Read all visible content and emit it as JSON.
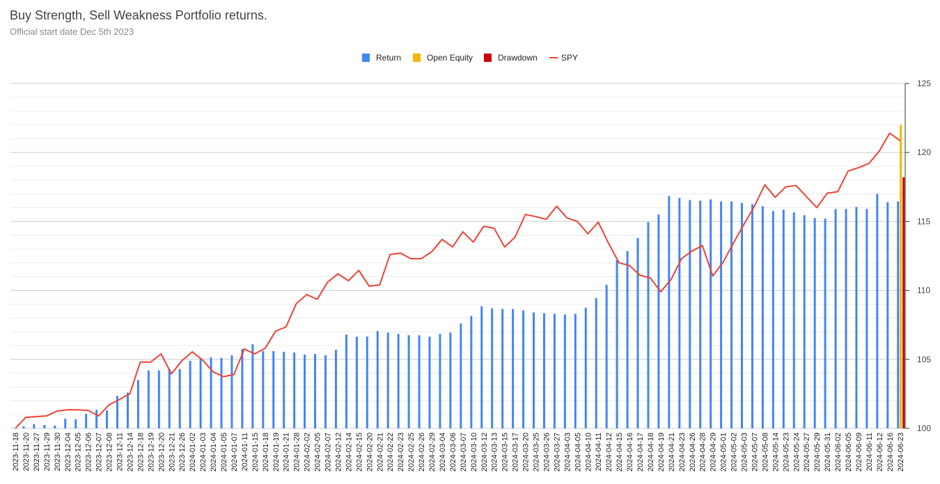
{
  "chart_data": {
    "type": "bar_line",
    "title": "Buy Strength, Sell Weakness Portfolio returns.",
    "subtitle": "Official start date Dec 5th 2023",
    "categories": [
      "2023-11-18",
      "2023-11-20",
      "2023-11-27",
      "2023-11-29",
      "2023-11-30",
      "2023-12-04",
      "2023-12-05",
      "2023-12-06",
      "2023-12-07",
      "2023-12-08",
      "2023-12-11",
      "2023-12-14",
      "2023-12-18",
      "2023-12-19",
      "2023-12-20",
      "2023-12-21",
      "2023-12-26",
      "2024-01-02",
      "2024-01-03",
      "2024-01-04",
      "2024-01-05",
      "2024-01-07",
      "2024-01-11",
      "2024-01-15",
      "2024-01-18",
      "2024-01-19",
      "2024-01-21",
      "2024-01-28",
      "2024-02-02",
      "2024-02-05",
      "2024-02-07",
      "2024-02-12",
      "2024-02-14",
      "2024-02-15",
      "2024-02-20",
      "2024-02-21",
      "2024-02-22",
      "2024-02-23",
      "2024-02-25",
      "2024-02-26",
      "2024-02-29",
      "2024-03-04",
      "2024-03-06",
      "2024-03-07",
      "2024-03-10",
      "2024-03-12",
      "2024-03-13",
      "2024-03-15",
      "2024-03-17",
      "2024-03-20",
      "2024-03-25",
      "2024-03-26",
      "2024-03-27",
      "2024-04-03",
      "2024-04-05",
      "2024-04-10",
      "2024-04-11",
      "2024-04-12",
      "2024-04-15",
      "2024-04-16",
      "2024-04-17",
      "2024-04-18",
      "2024-04-19",
      "2024-04-21",
      "2024-04-23",
      "2024-04-26",
      "2024-04-28",
      "2024-04-29",
      "2024-05-01",
      "2024-05-02",
      "2024-05-03",
      "2024-05-07",
      "2024-05-08",
      "2024-05-14",
      "2024-05-23",
      "2024-05-24",
      "2024-05-27",
      "2024-05-29",
      "2024-05-31",
      "2024-06-02",
      "2024-06-05",
      "2024-06-09",
      "2024-06-11",
      "2024-06-12",
      "2024-06-16",
      "2024-06-23"
    ],
    "series": [
      {
        "name": "Return",
        "type": "bar",
        "color": "#4285f4",
        "values": [
          100,
          100.15,
          100.3,
          100.25,
          100.2,
          100.7,
          100.65,
          101.05,
          101.35,
          101.3,
          102.35,
          102.6,
          103.5,
          104.2,
          104.2,
          104.3,
          104.3,
          104.9,
          105.05,
          105.15,
          105.1,
          105.3,
          105.75,
          106.1,
          105.6,
          105.6,
          105.55,
          105.5,
          105.35,
          105.4,
          105.3,
          105.7,
          106.8,
          106.65,
          106.65,
          107.05,
          106.95,
          106.85,
          106.75,
          106.75,
          106.65,
          106.85,
          106.95,
          107.6,
          108.15,
          108.85,
          108.7,
          108.65,
          108.65,
          108.55,
          108.4,
          108.35,
          108.3,
          108.25,
          108.3,
          108.75,
          109.45,
          110.4,
          112.2,
          112.85,
          113.8,
          114.95,
          115.5,
          116.85,
          116.7,
          116.55,
          116.5,
          116.6,
          116.45,
          116.45,
          116.35,
          116.25,
          116.1,
          115.75,
          115.85,
          115.65,
          115.45,
          115.25,
          115.2,
          115.9,
          115.9,
          116.05,
          115.9,
          117.0,
          116.4,
          116.45
        ]
      },
      {
        "name": "Open Equity",
        "type": "bar",
        "color": "#f4b400",
        "values": [
          null,
          null,
          null,
          null,
          null,
          null,
          null,
          null,
          null,
          null,
          null,
          null,
          null,
          null,
          null,
          null,
          null,
          null,
          null,
          null,
          null,
          null,
          null,
          null,
          null,
          null,
          null,
          null,
          null,
          null,
          null,
          null,
          null,
          null,
          null,
          null,
          null,
          null,
          null,
          null,
          null,
          null,
          null,
          null,
          null,
          null,
          null,
          null,
          null,
          null,
          null,
          null,
          null,
          null,
          null,
          null,
          null,
          null,
          null,
          null,
          null,
          null,
          null,
          null,
          null,
          null,
          null,
          null,
          null,
          null,
          null,
          null,
          null,
          null,
          null,
          null,
          null,
          null,
          null,
          null,
          null,
          null,
          null,
          null,
          null,
          122.0
        ]
      },
      {
        "name": "Drawdown",
        "type": "bar",
        "color": "#cc0000",
        "values": [
          null,
          null,
          null,
          null,
          null,
          null,
          null,
          null,
          null,
          null,
          null,
          null,
          null,
          null,
          null,
          null,
          null,
          null,
          null,
          null,
          null,
          null,
          null,
          null,
          null,
          null,
          null,
          null,
          null,
          null,
          null,
          null,
          null,
          null,
          null,
          null,
          null,
          null,
          null,
          null,
          null,
          null,
          null,
          null,
          null,
          null,
          null,
          null,
          null,
          null,
          null,
          null,
          null,
          null,
          null,
          null,
          null,
          null,
          null,
          null,
          null,
          null,
          null,
          null,
          null,
          null,
          null,
          null,
          null,
          null,
          null,
          null,
          null,
          null,
          null,
          null,
          null,
          null,
          null,
          null,
          null,
          null,
          null,
          null,
          null,
          118.2
        ]
      },
      {
        "name": "SPY",
        "type": "line",
        "color": "#ea4335",
        "values": [
          100,
          100.8,
          100.85,
          100.9,
          101.25,
          101.35,
          101.35,
          101.3,
          100.9,
          101.7,
          102.1,
          102.5,
          104.8,
          104.8,
          105.4,
          103.95,
          104.9,
          105.55,
          104.95,
          104.1,
          103.75,
          103.9,
          105.75,
          105.4,
          105.8,
          107.05,
          107.35,
          109.05,
          109.7,
          109.35,
          110.6,
          111.2,
          110.7,
          111.45,
          110.3,
          110.4,
          112.6,
          112.7,
          112.3,
          112.3,
          112.8,
          113.7,
          113.15,
          114.25,
          113.5,
          114.65,
          114.5,
          113.15,
          113.85,
          115.5,
          115.35,
          115.15,
          116.1,
          115.25,
          115.0,
          114.1,
          114.95,
          113.4,
          112.0,
          111.8,
          111.1,
          110.9,
          109.9,
          110.8,
          112.3,
          112.85,
          113.25,
          111.05,
          112.05,
          113.45,
          114.8,
          116.1,
          117.65,
          116.75,
          117.5,
          117.6,
          116.8,
          116.0,
          117.05,
          117.15,
          118.65,
          118.9,
          119.2,
          120.1,
          121.4,
          120.85
        ]
      }
    ],
    "ylim": [
      100,
      125
    ],
    "yticks": [
      100,
      105,
      110,
      115,
      120,
      125
    ],
    "minor_yticks": [
      101,
      102,
      103,
      104,
      106,
      107,
      108,
      109,
      111,
      112,
      113,
      114,
      116,
      117,
      118,
      119,
      121,
      122,
      123,
      124
    ],
    "y_axis_side": "right",
    "grid": true,
    "legend": "top"
  }
}
